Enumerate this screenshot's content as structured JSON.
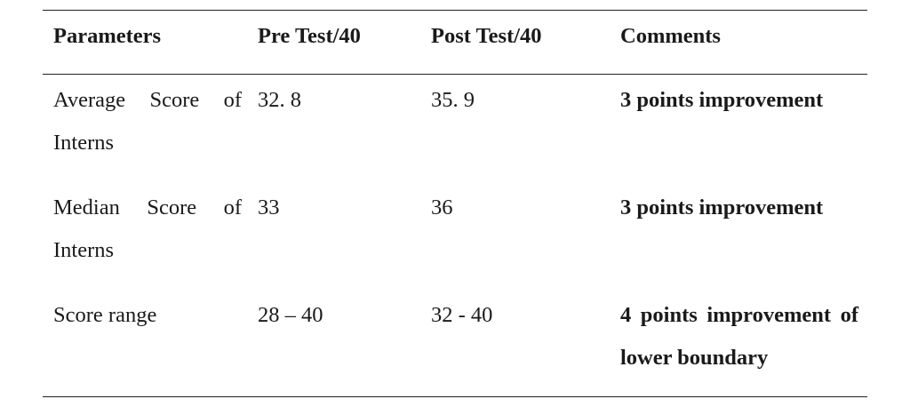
{
  "table": {
    "headers": [
      "Parameters",
      "Pre Test/40",
      "Post Test/40",
      "Comments"
    ],
    "rows": [
      {
        "parameter_line1": "Average Score of",
        "parameter_line2": "Interns",
        "pre": "32. 8",
        "post": "35. 9",
        "comment_line1": "3 points improvement",
        "comment_line2": ""
      },
      {
        "parameter_line1": "Median Score of",
        "parameter_line2": "Interns",
        "pre": "33",
        "post": "36",
        "comment_line1": "3 points improvement",
        "comment_line2": ""
      },
      {
        "parameter_line1": "Score range",
        "parameter_line2": "",
        "pre": "28 – 40",
        "post": "32 - 40",
        "comment_line1": "4 points improvement of",
        "comment_line2": "lower boundary"
      }
    ]
  }
}
